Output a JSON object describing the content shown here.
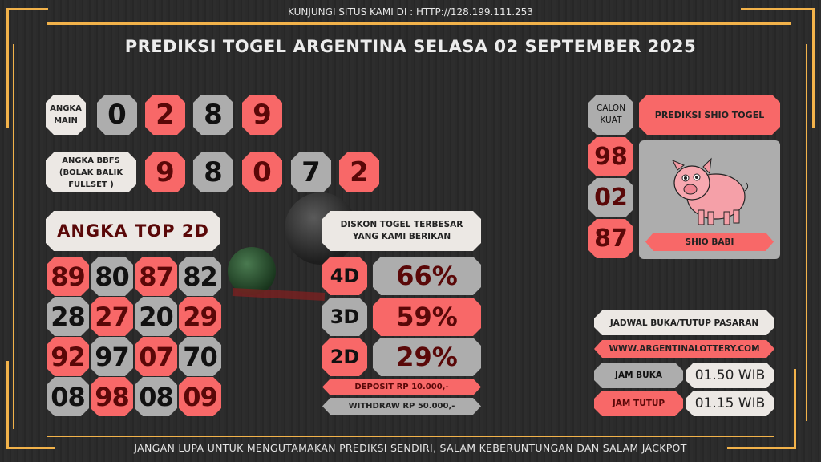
{
  "header": {
    "visit_text": "KUNJUNGI SITUS KAMI DI : HTTP://128.199.111.253",
    "title": "PREDIKSI TOGEL ARGENTINA SELASA 02 SEPTEMBER 2025"
  },
  "angka_main": {
    "label": "ANGKA MAIN",
    "digits": [
      "0",
      "2",
      "8",
      "9"
    ]
  },
  "bbfs": {
    "label": "ANGKA BBFS (BOLAK BALIK FULLSET )",
    "digits": [
      "9",
      "8",
      "0",
      "7",
      "2"
    ]
  },
  "top2d": {
    "label": "ANGKA TOP 2D",
    "rows": [
      [
        "89",
        "80",
        "87",
        "82"
      ],
      [
        "28",
        "27",
        "20",
        "29"
      ],
      [
        "92",
        "97",
        "07",
        "70"
      ],
      [
        "08",
        "98",
        "08",
        "09"
      ]
    ]
  },
  "diskon": {
    "label": "DISKON TOGEL TERBESAR YANG KAMI BERIKAN",
    "items": [
      {
        "type": "4D",
        "value": "66%"
      },
      {
        "type": "3D",
        "value": "59%"
      },
      {
        "type": "2D",
        "value": "29%"
      }
    ],
    "deposit": "DEPOSIT RP 10.000,-",
    "withdraw": "WITHDRAW RP 50.000,-"
  },
  "calon_kuat": {
    "label": "CALON KUAT",
    "numbers": [
      "98",
      "02",
      "87"
    ]
  },
  "shio": {
    "header": "PREDIKSI SHIO TOGEL",
    "name": "SHIO BABI",
    "icon": "pig-icon"
  },
  "jadwal": {
    "label": "JADWAL BUKA/TUTUP PASARAN",
    "website": "WWW.ARGENTINALOTTERY.COM",
    "buka_label": "JAM BUKA",
    "buka_value": "01.50 WIB",
    "tutup_label": "JAM TUTUP",
    "tutup_value": "01.15 WIB"
  },
  "footer": {
    "text": "JANGAN LUPA UNTUK MENGUTAMAKAN PREDIKSI SENDIRI, SALAM KEBERUNTUNGAN DAN SALAM JACKPOT"
  },
  "colors": {
    "coral": "#f86868",
    "gray": "#adadad",
    "offwhite": "#ece8e4",
    "gold": "#f2b24a",
    "background": "#2a2a2a"
  }
}
